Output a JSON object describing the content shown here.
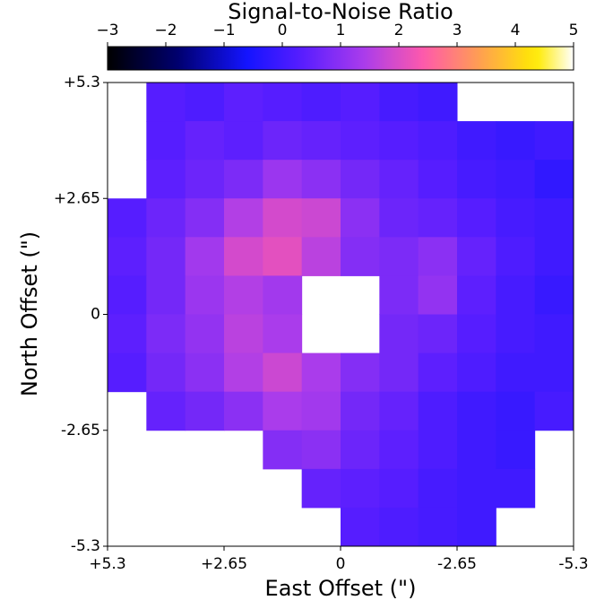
{
  "chart_data": {
    "type": "heatmap",
    "title": "Signal-to-Noise Ratio",
    "x_label": "East Offset (\")",
    "y_label": "North Offset (\")",
    "colormap": "gnuplot2",
    "clim": [
      -3,
      5
    ],
    "cticks": [
      {
        "value": -3,
        "label": "−3"
      },
      {
        "value": -2,
        "label": "−2"
      },
      {
        "value": -1,
        "label": "−1"
      },
      0,
      1,
      2,
      3,
      4,
      5
    ],
    "xlim": [
      5.3,
      -5.3
    ],
    "ylim": [
      -5.3,
      5.3
    ],
    "xticks": [
      {
        "value": 5.3,
        "label": "+5.3"
      },
      {
        "value": 2.65,
        "label": "+2.65"
      },
      0,
      {
        "value": -2.65,
        "label": "-2.65"
      },
      {
        "value": -5.3,
        "label": "-5.3"
      }
    ],
    "yticks": [
      {
        "value": 5.3,
        "label": "+5.3"
      },
      {
        "value": 2.65,
        "label": "+2.65"
      },
      0,
      {
        "value": -2.65,
        "label": "-2.65"
      },
      {
        "value": -5.3,
        "label": "-5.3"
      }
    ],
    "values": [
      [
        null,
        0.3,
        0.2,
        0.4,
        0.3,
        0.2,
        0.3,
        0.1,
        0.0,
        null,
        null,
        null
      ],
      [
        null,
        0.3,
        0.5,
        0.4,
        0.6,
        0.5,
        0.4,
        0.3,
        0.2,
        0.0,
        -0.1,
        0.0
      ],
      [
        null,
        0.4,
        0.6,
        0.8,
        1.2,
        1.0,
        0.7,
        0.5,
        0.3,
        0.1,
        0.0,
        -0.2
      ],
      [
        0.3,
        0.6,
        0.9,
        1.5,
        1.9,
        1.8,
        1.0,
        0.6,
        0.5,
        0.3,
        0.1,
        0.0
      ],
      [
        0.4,
        0.7,
        1.3,
        1.9,
        2.1,
        1.6,
        0.9,
        0.8,
        1.0,
        0.5,
        0.2,
        0.0
      ],
      [
        0.3,
        0.7,
        1.2,
        1.5,
        1.3,
        null,
        null,
        0.8,
        1.1,
        0.4,
        0.1,
        -0.1
      ],
      [
        0.4,
        0.8,
        1.1,
        1.6,
        1.4,
        null,
        null,
        0.7,
        0.6,
        0.3,
        0.1,
        0.0
      ],
      [
        0.3,
        0.7,
        1.0,
        1.5,
        1.8,
        1.4,
        0.9,
        0.7,
        0.4,
        0.2,
        0.0,
        0.0
      ],
      [
        null,
        0.5,
        0.7,
        1.0,
        1.4,
        1.3,
        0.7,
        0.5,
        0.2,
        0.0,
        -0.1,
        0.1
      ],
      [
        null,
        null,
        null,
        null,
        0.9,
        1.0,
        0.6,
        0.4,
        0.2,
        0.0,
        -0.1,
        null
      ],
      [
        null,
        null,
        null,
        null,
        null,
        0.5,
        0.4,
        0.3,
        0.1,
        0.0,
        0.0,
        null
      ],
      [
        null,
        null,
        null,
        null,
        null,
        null,
        0.3,
        0.2,
        0.1,
        0.0,
        null,
        null
      ]
    ]
  }
}
